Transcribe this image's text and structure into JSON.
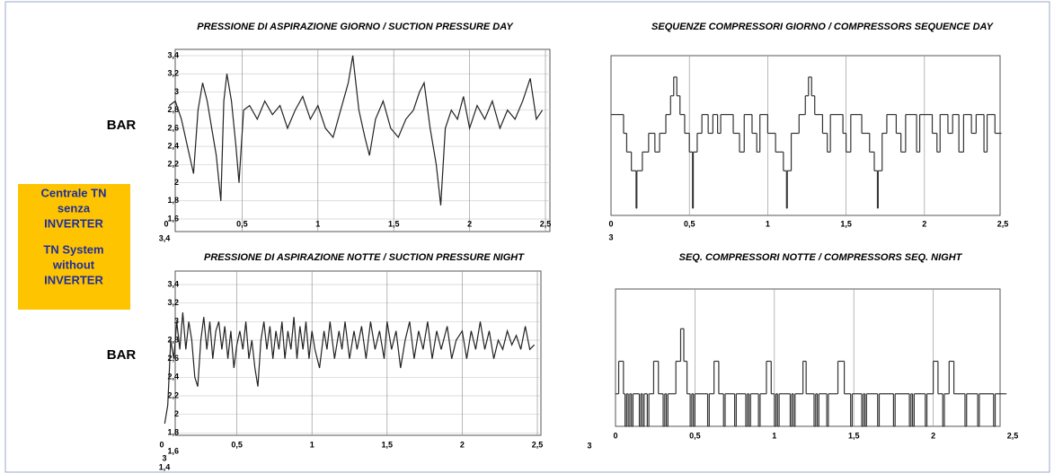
{
  "side": {
    "unit_top": "BAR",
    "unit_bottom": "BAR",
    "box_lines": [
      "Centrale TN",
      "senza",
      "INVERTER",
      "TN System",
      "without",
      "INVERTER"
    ]
  },
  "chart_data": [
    {
      "type": "line",
      "title": "PRESSIONE DI ASPIRAZIONE GIORNO / SUCTION PRESSURE DAY",
      "color": "#222",
      "grid": true,
      "xlim": [
        0,
        2.5
      ],
      "ylim": [
        1.6,
        3.4
      ],
      "xticks": [
        0,
        {
          "value": 0.5,
          "label": "0,5"
        },
        1,
        {
          "value": 1.5,
          "label": "1,5"
        },
        2,
        {
          "value": 2.5,
          "label": "2,5"
        }
      ],
      "yticks": [
        {
          "value": 1.6,
          "label": "1,6"
        },
        {
          "value": 1.8,
          "label": "1,8"
        },
        2,
        {
          "value": 2.2,
          "label": "2,2"
        },
        {
          "value": 2.4,
          "label": "2,4"
        },
        {
          "value": 2.6,
          "label": "2,6"
        },
        {
          "value": 2.8,
          "label": "2,8"
        },
        3,
        {
          "value": 3.2,
          "label": "3,2"
        },
        {
          "value": 3.4,
          "label": "3,4"
        }
      ],
      "annotations": [
        "3,4"
      ],
      "x": [
        0.02,
        0.06,
        0.1,
        0.14,
        0.18,
        0.21,
        0.24,
        0.27,
        0.3,
        0.33,
        0.36,
        0.38,
        0.4,
        0.43,
        0.46,
        0.48,
        0.51,
        0.55,
        0.6,
        0.65,
        0.7,
        0.75,
        0.8,
        0.85,
        0.9,
        0.95,
        1.0,
        1.05,
        1.1,
        1.15,
        1.2,
        1.23,
        1.27,
        1.31,
        1.34,
        1.38,
        1.43,
        1.48,
        1.53,
        1.58,
        1.63,
        1.67,
        1.7,
        1.74,
        1.78,
        1.81,
        1.84,
        1.88,
        1.92,
        1.96,
        2.0,
        2.05,
        2.1,
        2.15,
        2.2,
        2.25,
        2.3,
        2.35,
        2.4,
        2.44,
        2.48
      ],
      "values": [
        2.85,
        2.9,
        2.7,
        2.4,
        2.1,
        2.8,
        3.1,
        2.9,
        2.6,
        2.3,
        1.8,
        2.9,
        3.2,
        2.9,
        2.4,
        2.0,
        2.8,
        2.85,
        2.7,
        2.9,
        2.75,
        2.85,
        2.6,
        2.8,
        2.95,
        2.7,
        2.85,
        2.6,
        2.5,
        2.8,
        3.1,
        3.4,
        2.8,
        2.5,
        2.3,
        2.7,
        2.9,
        2.6,
        2.5,
        2.7,
        2.8,
        3.0,
        3.1,
        2.6,
        2.2,
        1.75,
        2.6,
        2.8,
        2.7,
        2.95,
        2.6,
        2.85,
        2.7,
        2.9,
        2.6,
        2.8,
        2.7,
        2.9,
        3.15,
        2.7,
        2.8
      ]
    },
    {
      "type": "step",
      "title": "SEQUENZE COMPRESSORI GIORNO / COMPRESSORS SEQUENCE DAY",
      "color": "#333",
      "grid": true,
      "xlim": [
        0,
        2.5
      ],
      "ylim": [
        0,
        8
      ],
      "xticks": [
        0,
        {
          "value": 0.5,
          "label": "0,5"
        },
        1,
        {
          "value": 1.5,
          "label": "1,5"
        },
        2,
        {
          "value": 2.5,
          "label": "2,5"
        }
      ],
      "annotations": [
        "3"
      ],
      "x": [
        0,
        0.08,
        0.1,
        0.13,
        0.16,
        0.165,
        0.2,
        0.24,
        0.28,
        0.31,
        0.35,
        0.38,
        0.4,
        0.42,
        0.44,
        0.47,
        0.5,
        0.52,
        0.525,
        0.55,
        0.58,
        0.62,
        0.65,
        0.68,
        0.7,
        0.78,
        0.82,
        0.85,
        0.9,
        0.93,
        0.95,
        1.0,
        1.05,
        1.1,
        1.12,
        1.125,
        1.15,
        1.2,
        1.24,
        1.26,
        1.28,
        1.3,
        1.35,
        1.38,
        1.4,
        1.48,
        1.5,
        1.53,
        1.6,
        1.65,
        1.68,
        1.7,
        1.705,
        1.73,
        1.76,
        1.82,
        1.85,
        1.88,
        1.95,
        1.97,
        2.05,
        2.08,
        2.1,
        2.15,
        2.18,
        2.22,
        2.25,
        2.3,
        2.33,
        2.38,
        2.4,
        2.45,
        2.48
      ],
      "values": [
        5,
        4,
        3,
        2,
        0,
        2,
        3,
        4,
        3,
        4,
        5,
        6,
        7,
        6,
        5,
        4,
        3,
        0,
        3,
        4,
        5,
        4,
        5,
        4,
        5,
        4,
        3,
        5,
        4,
        3,
        5,
        4,
        3,
        2,
        0,
        2,
        4,
        5,
        6,
        7,
        6,
        5,
        4,
        3,
        5,
        4,
        3,
        5,
        4,
        3,
        2,
        0,
        2,
        4,
        5,
        4,
        3,
        5,
        3,
        5,
        4,
        3,
        5,
        4,
        5,
        3,
        5,
        4,
        5,
        3,
        5,
        4,
        4
      ]
    },
    {
      "type": "line",
      "title": "PRESSIONE DI ASPIRAZIONE NOTTE / SUCTION PRESSURE NIGHT",
      "color": "#222",
      "grid": true,
      "xlim": [
        0,
        2.5
      ],
      "ylim": [
        1.6,
        3.4
      ],
      "xticks": [
        0,
        {
          "value": 0.5,
          "label": "0,5"
        },
        1,
        {
          "value": 1.5,
          "label": "1,5"
        },
        2,
        {
          "value": 2.5,
          "label": "2,5"
        }
      ],
      "yticks": [
        {
          "value": 1.6,
          "label": "1,6"
        },
        {
          "value": 1.8,
          "label": "1,8"
        },
        2,
        {
          "value": 2.2,
          "label": "2,2"
        },
        {
          "value": 2.4,
          "label": "2,4"
        },
        {
          "value": 2.6,
          "label": "2,6"
        },
        {
          "value": 2.8,
          "label": "2,8"
        },
        3,
        {
          "value": 3.2,
          "label": "3,2"
        },
        {
          "value": 3.4,
          "label": "3,4"
        }
      ],
      "annotations": [
        "3",
        "1,4"
      ],
      "x": [
        0.02,
        0.04,
        0.06,
        0.08,
        0.1,
        0.12,
        0.14,
        0.16,
        0.18,
        0.2,
        0.22,
        0.24,
        0.26,
        0.28,
        0.3,
        0.32,
        0.34,
        0.36,
        0.38,
        0.4,
        0.42,
        0.44,
        0.46,
        0.48,
        0.5,
        0.52,
        0.54,
        0.56,
        0.58,
        0.6,
        0.62,
        0.64,
        0.66,
        0.68,
        0.7,
        0.72,
        0.74,
        0.76,
        0.78,
        0.8,
        0.82,
        0.84,
        0.86,
        0.88,
        0.9,
        0.92,
        0.94,
        0.96,
        0.98,
        1.0,
        1.02,
        1.05,
        1.08,
        1.1,
        1.12,
        1.15,
        1.18,
        1.2,
        1.22,
        1.25,
        1.28,
        1.3,
        1.33,
        1.36,
        1.39,
        1.42,
        1.45,
        1.48,
        1.5,
        1.53,
        1.56,
        1.59,
        1.62,
        1.65,
        1.68,
        1.71,
        1.74,
        1.77,
        1.8,
        1.83,
        1.86,
        1.9,
        1.93,
        1.96,
        2.0,
        2.03,
        2.06,
        2.09,
        2.12,
        2.15,
        2.18,
        2.21,
        2.24,
        2.27,
        2.3,
        2.33,
        2.36,
        2.39,
        2.42,
        2.45,
        2.48
      ],
      "values": [
        1.9,
        2.1,
        2.8,
        2.6,
        3.0,
        2.7,
        3.1,
        2.7,
        3.0,
        2.8,
        2.4,
        2.3,
        2.8,
        3.05,
        2.7,
        3.0,
        2.6,
        2.9,
        3.0,
        2.7,
        2.95,
        2.6,
        2.9,
        2.5,
        2.75,
        2.9,
        2.7,
        3.0,
        2.6,
        2.8,
        2.5,
        2.3,
        2.8,
        3.0,
        2.7,
        2.95,
        2.6,
        2.9,
        2.7,
        3.0,
        2.6,
        2.9,
        2.7,
        3.05,
        2.6,
        2.95,
        2.7,
        3.0,
        2.6,
        2.9,
        2.7,
        2.5,
        2.9,
        2.7,
        3.0,
        2.6,
        2.9,
        2.7,
        3.0,
        2.6,
        2.9,
        2.7,
        2.95,
        2.6,
        3.0,
        2.7,
        2.9,
        2.6,
        3.0,
        2.7,
        2.9,
        2.5,
        2.8,
        3.0,
        2.6,
        2.9,
        2.7,
        3.0,
        2.6,
        2.9,
        2.7,
        2.95,
        2.6,
        2.8,
        2.9,
        2.6,
        2.9,
        2.7,
        3.0,
        2.7,
        2.9,
        2.6,
        2.8,
        2.7,
        2.9,
        2.75,
        2.85,
        2.7,
        2.95,
        2.7,
        2.75
      ]
    },
    {
      "type": "step",
      "title": "SEQ. COMPRESSORI NOTTE / COMPRESSORS SEQ. NIGHT",
      "color": "#333",
      "grid": true,
      "xlim": [
        0,
        2.5
      ],
      "ylim": [
        0,
        8
      ],
      "xticks": [
        0,
        {
          "value": 0.5,
          "label": "0,5"
        },
        1,
        {
          "value": 1.5,
          "label": "1,5"
        },
        2,
        {
          "value": 2.5,
          "label": "2,5"
        }
      ],
      "annotations": [
        "3"
      ],
      "x": [
        0,
        0.02,
        0.05,
        0.06,
        0.07,
        0.08,
        0.09,
        0.1,
        0.11,
        0.15,
        0.16,
        0.17,
        0.18,
        0.2,
        0.21,
        0.24,
        0.27,
        0.3,
        0.31,
        0.32,
        0.33,
        0.38,
        0.41,
        0.43,
        0.45,
        0.47,
        0.48,
        0.49,
        0.5,
        0.58,
        0.59,
        0.62,
        0.65,
        0.68,
        0.69,
        0.75,
        0.76,
        0.82,
        0.83,
        0.84,
        0.85,
        0.9,
        0.91,
        0.95,
        0.98,
        1.0,
        1.01,
        1.02,
        1.03,
        1.1,
        1.11,
        1.12,
        1.13,
        1.18,
        1.2,
        1.25,
        1.26,
        1.27,
        1.28,
        1.33,
        1.34,
        1.4,
        1.44,
        1.48,
        1.49,
        1.55,
        1.56,
        1.57,
        1.58,
        1.65,
        1.66,
        1.75,
        1.76,
        1.85,
        1.86,
        1.87,
        1.88,
        1.95,
        1.96,
        2.0,
        2.03,
        2.06,
        2.07,
        2.1,
        2.13,
        2.2,
        2.21,
        2.28,
        2.29,
        2.38,
        2.39,
        2.45
      ],
      "values": [
        2,
        4,
        2,
        0,
        2,
        0,
        2,
        0,
        2,
        0,
        2,
        0,
        2,
        0,
        2,
        4,
        2,
        0,
        2,
        0,
        2,
        4,
        6,
        4,
        2,
        0,
        2,
        0,
        2,
        0,
        2,
        4,
        2,
        0,
        2,
        0,
        2,
        0,
        2,
        0,
        2,
        0,
        2,
        4,
        2,
        0,
        2,
        0,
        2,
        0,
        2,
        0,
        2,
        4,
        2,
        0,
        2,
        0,
        2,
        0,
        2,
        4,
        2,
        0,
        2,
        0,
        2,
        0,
        2,
        0,
        2,
        0,
        2,
        0,
        2,
        0,
        2,
        0,
        2,
        4,
        2,
        0,
        2,
        4,
        2,
        0,
        2,
        0,
        2,
        0,
        2,
        2
      ]
    }
  ]
}
